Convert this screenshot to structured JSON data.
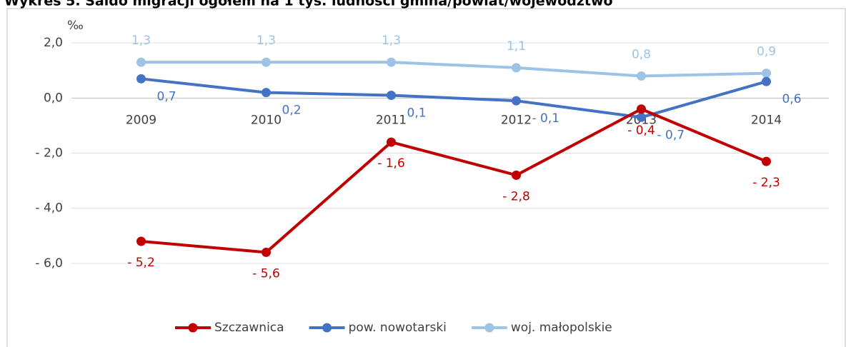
{
  "chart_data": {
    "type": "line",
    "title": "Wykres 5. Saldo migracji ogółem na 1 tys. ludności gmina/powiat/województwo",
    "y_unit": "‰",
    "categories": [
      "2009",
      "2010",
      "2011",
      "2012",
      "2013",
      "2014"
    ],
    "series": [
      {
        "name": "Szczawnica",
        "color": "#c00000",
        "values": [
          -5.2,
          -5.6,
          -1.6,
          -2.8,
          -0.4,
          -2.3
        ],
        "value_labels": [
          "- 5,2",
          "- 5,6",
          "- 1,6",
          "- 2,8",
          "- 0,4",
          "- 2,3"
        ]
      },
      {
        "name": "pow. nowotarski",
        "color": "#4472c4",
        "values": [
          0.7,
          0.2,
          0.1,
          -0.1,
          -0.7,
          0.6
        ],
        "value_labels": [
          "0,7",
          "0,2",
          "0,1",
          "- 0,1",
          "- 0,7",
          "0,6"
        ]
      },
      {
        "name": "woj. małopolskie",
        "color": "#9dc3e6",
        "values": [
          1.3,
          1.3,
          1.3,
          1.1,
          0.8,
          0.9
        ],
        "value_labels": [
          "1,3",
          "1,3",
          "1,3",
          "1,1",
          "0,8",
          "0,9"
        ]
      }
    ],
    "ylim": [
      -6.6,
      2.6
    ],
    "yticks": [
      {
        "value": 2,
        "label": "2,0"
      },
      {
        "value": 0,
        "label": "0,0"
      },
      {
        "value": -2,
        "label": "- 2,0"
      },
      {
        "value": -4,
        "label": "- 4,0"
      },
      {
        "value": -6,
        "label": "- 6,0"
      }
    ],
    "grid": true,
    "legend": "bottom"
  }
}
